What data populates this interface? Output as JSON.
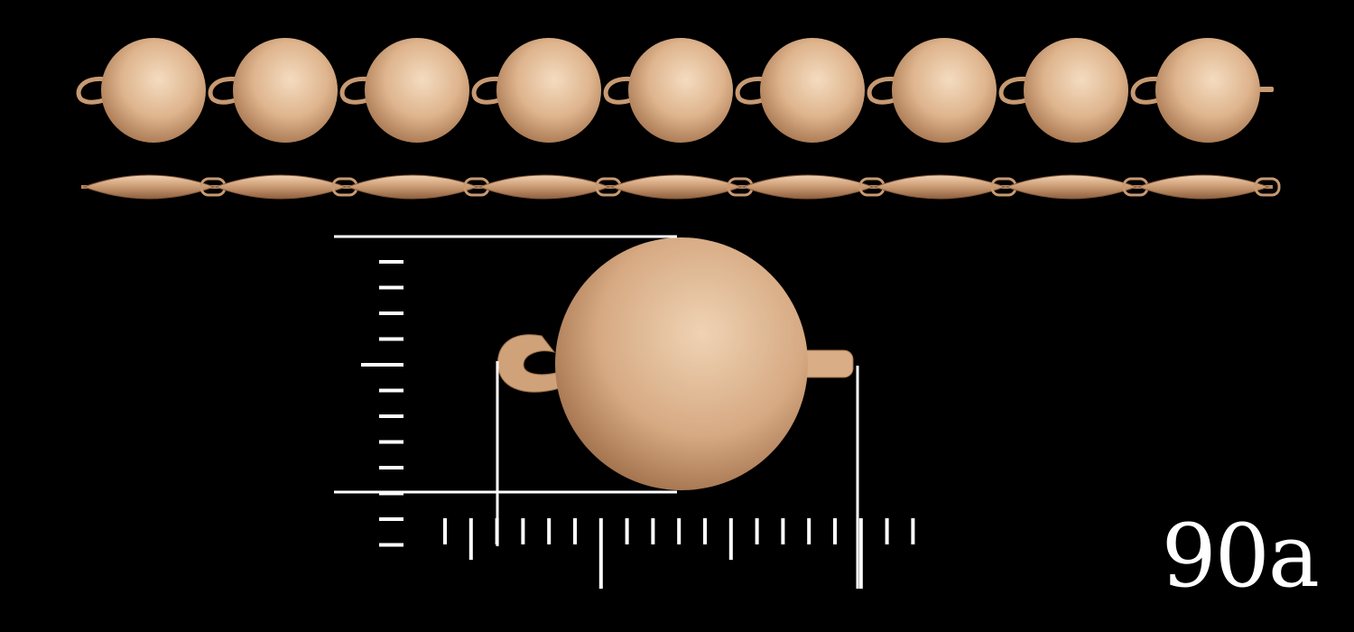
{
  "image": {
    "label": "90a",
    "colors": {
      "background": "#000000",
      "metal_light": "#f4dcc0",
      "metal_mid": "#d6a982",
      "metal_dark": "#a4734d",
      "measure_lines": "#ffffff"
    },
    "bead_chain": {
      "front_view_beads": 9,
      "side_view_segments": 9
    }
  }
}
